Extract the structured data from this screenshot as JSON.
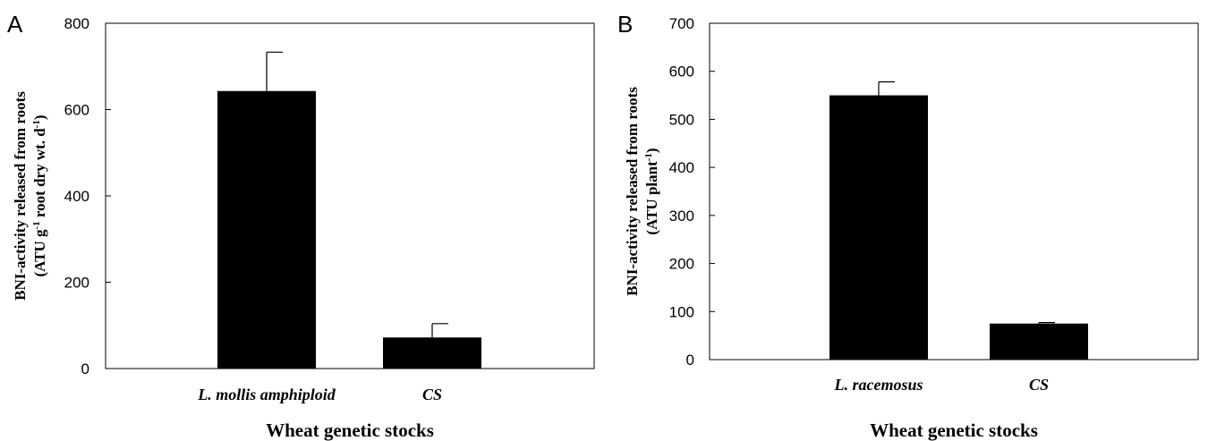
{
  "chart_data": [
    {
      "type": "bar",
      "panel_label": "A",
      "categories": [
        "L. mollis amphiploid",
        "CS"
      ],
      "values": [
        643,
        72
      ],
      "error": [
        90,
        32
      ],
      "ylim": [
        0,
        800
      ],
      "yticks": [
        0,
        200,
        400,
        600,
        800
      ],
      "xlabel": "Wheat genetic stocks",
      "ylabel_line1": "BNI-activity released from roots",
      "ylabel_line2": "(ATU g",
      "ylabel_sup1": "-1",
      "ylabel_mid": " root dry wt. d",
      "ylabel_sup2": "-1",
      "ylabel_end": ")",
      "bar_color": "#000000",
      "grid": false
    },
    {
      "type": "bar",
      "panel_label": "B",
      "categories": [
        "L. racemosus",
        "CS"
      ],
      "values": [
        550,
        75
      ],
      "error": [
        28,
        2
      ],
      "ylim": [
        0,
        700
      ],
      "yticks": [
        0,
        100,
        200,
        300,
        400,
        500,
        600,
        700
      ],
      "xlabel": "Wheat genetic stocks",
      "ylabel_line1": "BNI-activity released from roots",
      "ylabel_line2": "(ATU plant",
      "ylabel_sup1": "-1",
      "ylabel_mid": "",
      "ylabel_sup2": "",
      "ylabel_end": ")",
      "bar_color": "#000000",
      "grid": false
    }
  ]
}
